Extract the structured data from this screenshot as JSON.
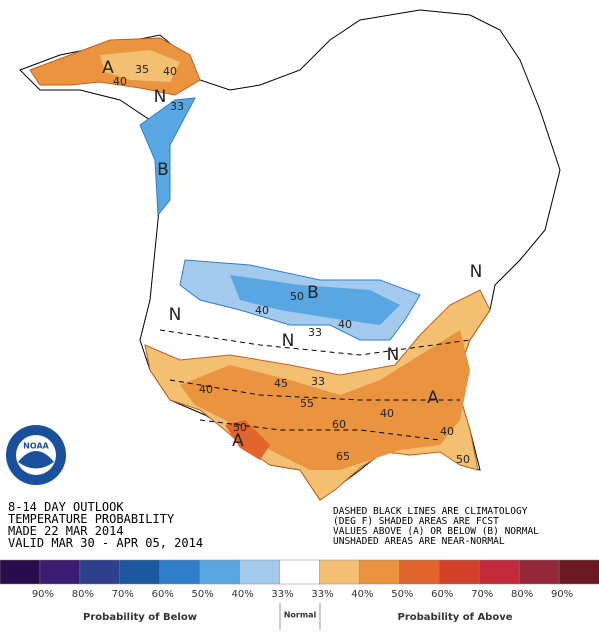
{
  "map": {
    "labels": [
      "A",
      "40",
      "35",
      "40",
      "N",
      "33",
      "B",
      "B",
      "50",
      "40",
      "33",
      "40",
      "N",
      "N",
      "N",
      "N",
      "A",
      "A",
      "40",
      "45",
      "33",
      "55",
      "50",
      "60",
      "65",
      "40",
      "40",
      "50"
    ]
  },
  "logo": "NOAA",
  "header": {
    "lines": [
      "8-14 DAY OUTLOOK",
      "TEMPERATURE PROBABILITY",
      "MADE  22 MAR 2014",
      "VALID  MAR 30 - APR 05, 2014"
    ]
  },
  "note": {
    "lines": [
      "DASHED BLACK LINES ARE CLIMATOLOGY",
      "(DEG F) SHADED AREAS ARE FCST",
      "VALUES ABOVE (A) OR BELOW (B) NORMAL",
      "UNSHADED AREAS ARE NEAR-NORMAL"
    ]
  },
  "legend": {
    "colors": [
      "#2a0b4e",
      "#3b1c70",
      "#2e3f8e",
      "#1c57a2",
      "#2f7ec8",
      "#58a7e2",
      "#a3c9ec",
      "#ffffff",
      "#f2c070",
      "#ea9440",
      "#e2652c",
      "#d3402a",
      "#c52a3c",
      "#952838",
      "#6a1a20"
    ],
    "labels": [
      "90%",
      "80%",
      "70%",
      "60%",
      "50%",
      "40%",
      "33%",
      "33%",
      "40%",
      "50%",
      "60%",
      "70%",
      "80%",
      "90%"
    ],
    "below": "Probability of Below",
    "normal": "Normal",
    "above": "Probability of Above"
  }
}
